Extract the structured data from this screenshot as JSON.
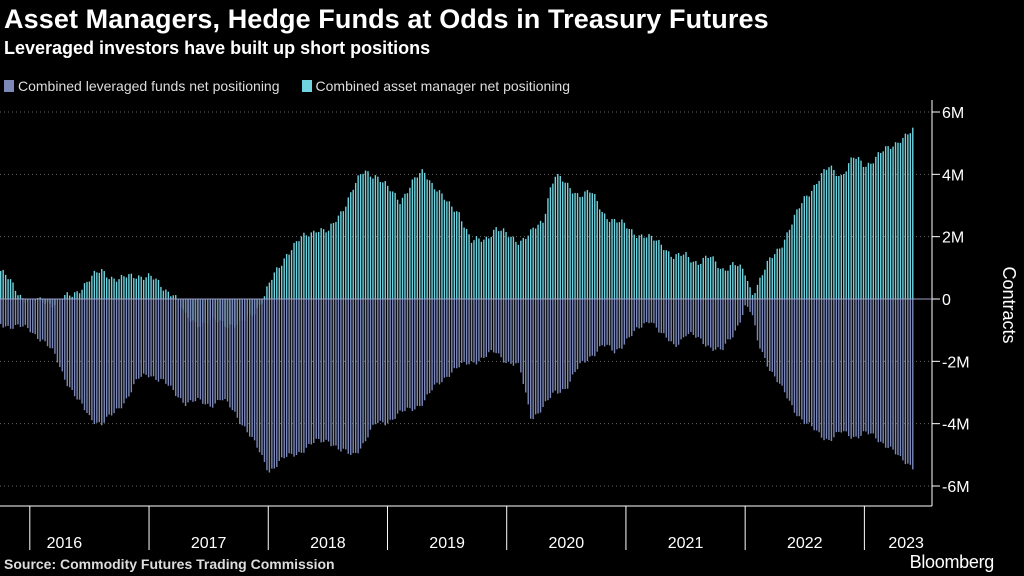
{
  "title": "Asset Managers, Hedge Funds at Odds in Treasury Futures",
  "subtitle": "Leveraged investors have built up short positions",
  "legend": [
    {
      "label": "Combined leveraged funds net positioning",
      "color": "#7b88b8"
    },
    {
      "label": "Combined asset manager net positioning",
      "color": "#6fd4e0"
    }
  ],
  "source": "Source: Commodity Futures Trading Commission",
  "brand": "Bloomberg",
  "colors": {
    "leveraged": "#7b88b8",
    "asset": "#6fd4e0",
    "grid": "#666666",
    "axis": "#ffffff"
  },
  "chart_data": {
    "type": "bar",
    "title": "Asset Managers, Hedge Funds at Odds in Treasury Futures",
    "ylabel": "Contracts",
    "ylim": [
      -6.5,
      6.2
    ],
    "y_unit": "M",
    "y_ticks": [
      6,
      4,
      2,
      0,
      -2,
      -4,
      -6
    ],
    "y_tick_labels": [
      "6M",
      "4M",
      "2M",
      "0",
      "-2M",
      "-4M",
      "-6M"
    ],
    "x_labels": [
      "2016",
      "2017",
      "2018",
      "2019",
      "2020",
      "2021",
      "2022",
      "2023"
    ],
    "x_range": [
      2015.75,
      2023.5
    ],
    "series": [
      {
        "name": "Combined asset manager net positioning",
        "points": [
          [
            2015.75,
            0.9
          ],
          [
            2015.9,
            0.2
          ],
          [
            2016.0,
            -0.1
          ],
          [
            2016.2,
            -0.1
          ],
          [
            2016.35,
            0.1
          ],
          [
            2016.45,
            0.5
          ],
          [
            2016.6,
            0.9
          ],
          [
            2016.75,
            0.6
          ],
          [
            2016.9,
            0.8
          ],
          [
            2017.0,
            0.7
          ],
          [
            2017.1,
            0.4
          ],
          [
            2017.2,
            0.2
          ],
          [
            2017.3,
            -0.6
          ],
          [
            2017.45,
            -0.8
          ],
          [
            2017.6,
            -0.7
          ],
          [
            2017.75,
            -0.9
          ],
          [
            2017.85,
            -0.5
          ],
          [
            2017.95,
            0.0
          ],
          [
            2018.05,
            0.8
          ],
          [
            2018.15,
            1.5
          ],
          [
            2018.3,
            2.0
          ],
          [
            2018.4,
            2.3
          ],
          [
            2018.5,
            2.1
          ],
          [
            2018.6,
            2.8
          ],
          [
            2018.7,
            3.5
          ],
          [
            2018.8,
            4.1
          ],
          [
            2018.9,
            4.0
          ],
          [
            2019.0,
            3.5
          ],
          [
            2019.1,
            3.2
          ],
          [
            2019.2,
            3.7
          ],
          [
            2019.3,
            4.1
          ],
          [
            2019.4,
            3.6
          ],
          [
            2019.5,
            3.0
          ],
          [
            2019.6,
            2.8
          ],
          [
            2019.7,
            1.8
          ],
          [
            2019.8,
            1.9
          ],
          [
            2019.9,
            2.3
          ],
          [
            2020.0,
            2.0
          ],
          [
            2020.1,
            1.9
          ],
          [
            2020.2,
            2.1
          ],
          [
            2020.3,
            2.5
          ],
          [
            2020.35,
            3.5
          ],
          [
            2020.4,
            4.0
          ],
          [
            2020.5,
            3.6
          ],
          [
            2020.6,
            3.4
          ],
          [
            2020.7,
            3.4
          ],
          [
            2020.8,
            2.8
          ],
          [
            2020.9,
            2.5
          ],
          [
            2021.0,
            2.3
          ],
          [
            2021.1,
            2.1
          ],
          [
            2021.2,
            1.9
          ],
          [
            2021.3,
            1.8
          ],
          [
            2021.4,
            1.3
          ],
          [
            2021.5,
            1.4
          ],
          [
            2021.6,
            1.2
          ],
          [
            2021.7,
            1.3
          ],
          [
            2021.8,
            1.0
          ],
          [
            2021.9,
            1.1
          ],
          [
            2022.0,
            0.8
          ],
          [
            2022.05,
            0.2
          ],
          [
            2022.1,
            0.5
          ],
          [
            2022.2,
            1.2
          ],
          [
            2022.3,
            1.8
          ],
          [
            2022.4,
            2.5
          ],
          [
            2022.5,
            3.3
          ],
          [
            2022.6,
            3.8
          ],
          [
            2022.7,
            4.2
          ],
          [
            2022.8,
            4.0
          ],
          [
            2022.9,
            4.5
          ],
          [
            2023.0,
            4.3
          ],
          [
            2023.1,
            4.6
          ],
          [
            2023.2,
            4.8
          ],
          [
            2023.3,
            5.2
          ],
          [
            2023.4,
            5.35
          ]
        ]
      },
      {
        "name": "Combined leveraged funds net positioning",
        "points": [
          [
            2015.75,
            -0.8
          ],
          [
            2015.9,
            -0.9
          ],
          [
            2016.0,
            -1.0
          ],
          [
            2016.1,
            -1.3
          ],
          [
            2016.2,
            -1.8
          ],
          [
            2016.3,
            -2.6
          ],
          [
            2016.4,
            -3.3
          ],
          [
            2016.5,
            -3.8
          ],
          [
            2016.6,
            -4.0
          ],
          [
            2016.7,
            -3.7
          ],
          [
            2016.8,
            -3.2
          ],
          [
            2016.9,
            -2.6
          ],
          [
            2017.0,
            -2.4
          ],
          [
            2017.1,
            -2.6
          ],
          [
            2017.2,
            -3.0
          ],
          [
            2017.3,
            -3.3
          ],
          [
            2017.4,
            -3.3
          ],
          [
            2017.5,
            -3.4
          ],
          [
            2017.6,
            -3.2
          ],
          [
            2017.7,
            -3.6
          ],
          [
            2017.8,
            -4.1
          ],
          [
            2017.9,
            -4.8
          ],
          [
            2018.0,
            -5.5
          ],
          [
            2018.1,
            -5.2
          ],
          [
            2018.2,
            -5.0
          ],
          [
            2018.3,
            -4.8
          ],
          [
            2018.4,
            -4.6
          ],
          [
            2018.5,
            -4.5
          ],
          [
            2018.6,
            -4.9
          ],
          [
            2018.7,
            -5.0
          ],
          [
            2018.8,
            -4.6
          ],
          [
            2018.9,
            -4.0
          ],
          [
            2019.0,
            -3.9
          ],
          [
            2019.1,
            -3.7
          ],
          [
            2019.2,
            -3.5
          ],
          [
            2019.3,
            -3.3
          ],
          [
            2019.4,
            -2.8
          ],
          [
            2019.5,
            -2.4
          ],
          [
            2019.6,
            -2.2
          ],
          [
            2019.7,
            -2.0
          ],
          [
            2019.8,
            -1.9
          ],
          [
            2019.9,
            -1.7
          ],
          [
            2020.0,
            -2.0
          ],
          [
            2020.1,
            -2.2
          ],
          [
            2020.15,
            -3.0
          ],
          [
            2020.2,
            -3.8
          ],
          [
            2020.3,
            -3.5
          ],
          [
            2020.4,
            -3.0
          ],
          [
            2020.5,
            -2.8
          ],
          [
            2020.6,
            -2.2
          ],
          [
            2020.7,
            -1.8
          ],
          [
            2020.8,
            -1.5
          ],
          [
            2020.9,
            -1.7
          ],
          [
            2021.0,
            -1.3
          ],
          [
            2021.1,
            -1.0
          ],
          [
            2021.2,
            -0.6
          ],
          [
            2021.3,
            -1.2
          ],
          [
            2021.4,
            -1.5
          ],
          [
            2021.5,
            -1.1
          ],
          [
            2021.6,
            -1.3
          ],
          [
            2021.7,
            -1.5
          ],
          [
            2021.8,
            -1.7
          ],
          [
            2021.9,
            -1.1
          ],
          [
            2022.0,
            -0.2
          ],
          [
            2022.05,
            -0.5
          ],
          [
            2022.1,
            -1.4
          ],
          [
            2022.2,
            -2.2
          ],
          [
            2022.3,
            -2.9
          ],
          [
            2022.4,
            -3.5
          ],
          [
            2022.5,
            -4.0
          ],
          [
            2022.6,
            -4.3
          ],
          [
            2022.7,
            -4.5
          ],
          [
            2022.8,
            -4.3
          ],
          [
            2022.9,
            -4.4
          ],
          [
            2023.0,
            -4.3
          ],
          [
            2023.1,
            -4.5
          ],
          [
            2023.2,
            -4.7
          ],
          [
            2023.3,
            -5.2
          ],
          [
            2023.4,
            -5.35
          ]
        ]
      }
    ]
  }
}
